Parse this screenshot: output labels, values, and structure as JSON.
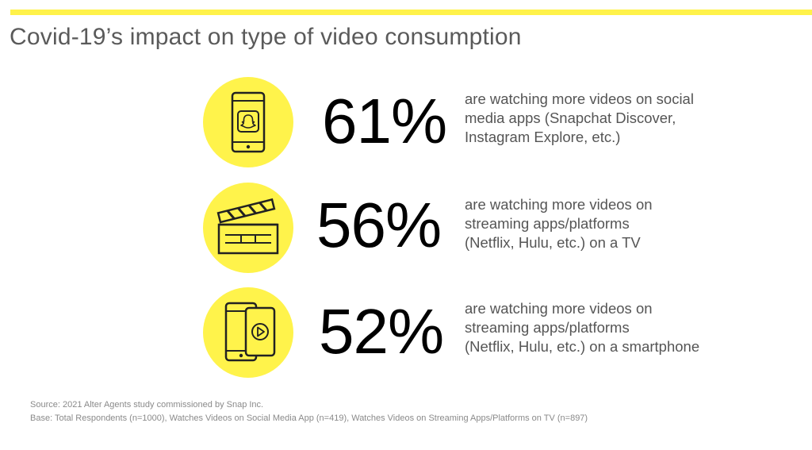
{
  "title": "Covid-19’s impact on type of video consumption",
  "colors": {
    "accent": "#fff34b",
    "title_text": "#5a5a5a",
    "body_text": "#555555",
    "stat_text": "#000000"
  },
  "items": [
    {
      "icon": "smartphone-snapchat-icon",
      "percent": "61%",
      "lines": [
        "are watching more videos on social",
        "media apps (Snapchat Discover,",
        "Instagram Explore, etc.)"
      ]
    },
    {
      "icon": "clapperboard-icon",
      "percent": "56%",
      "lines": [
        "are watching more videos on",
        "streaming apps/platforms",
        "(Netflix, Hulu, etc.) on a TV"
      ]
    },
    {
      "icon": "phone-video-play-icon",
      "percent": "52%",
      "lines": [
        "are watching more videos on",
        "streaming apps/platforms",
        "(Netflix, Hulu, etc.) on a smartphone"
      ]
    }
  ],
  "footnotes": {
    "source": "Source: 2021 Alter Agents study commissioned by Snap Inc.",
    "base": "Base: Total Respondents (n=1000), Watches Videos on Social Media App (n=419), Watches Videos on Streaming Apps/Platforms on TV (n=897)"
  }
}
